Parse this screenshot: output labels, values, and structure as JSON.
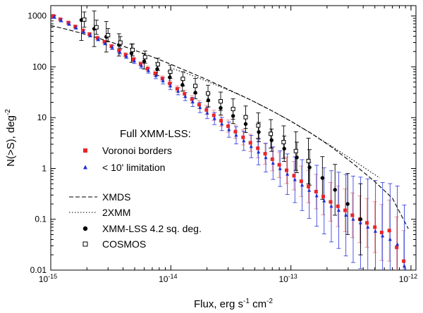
{
  "chart_data": {
    "type": "scatter",
    "scale": "log-log",
    "title": "",
    "xlabel": {
      "base": "Flux, erg s",
      "exp1": "-1",
      "mid": " cm",
      "exp2": "-2"
    },
    "ylabel": {
      "base": "N(>S), deg",
      "exp": "-2"
    },
    "xlim": [
      1e-15,
      1.1e-12
    ],
    "ylim": [
      0.01,
      1600
    ],
    "x_ticks": [
      {
        "value": 1e-15,
        "base": "10",
        "exp": "-15"
      },
      {
        "value": 1e-14,
        "base": "10",
        "exp": "-14"
      },
      {
        "value": 1e-13,
        "base": "10",
        "exp": "-13"
      },
      {
        "value": 1e-12,
        "base": "10",
        "exp": "-12"
      }
    ],
    "y_ticks": [
      {
        "value": 0.01,
        "label": "0.01"
      },
      {
        "value": 0.1,
        "label": "0.1"
      },
      {
        "value": 1,
        "label": "1"
      },
      {
        "value": 10,
        "label": "10"
      },
      {
        "value": 100,
        "label": "100"
      },
      {
        "value": 1000,
        "label": "1000"
      }
    ],
    "legend": {
      "position": "bottom-left",
      "group_title": "Full XMM-LSS:",
      "entries": [
        {
          "series": "voronoi",
          "label": "Voronoi borders"
        },
        {
          "series": "limit10",
          "label": "< 10' limitation"
        },
        {
          "series": "xmds",
          "label": "XMDS"
        },
        {
          "series": "twoxmm",
          "label": "2XMM"
        },
        {
          "series": "xmmlss42",
          "label": "XMM-LSS 4.2 sq. deg."
        },
        {
          "series": "cosmos",
          "label": "COSMOS"
        }
      ]
    },
    "series": [
      {
        "id": "voronoi",
        "name": "Voronoi borders",
        "marker": "square",
        "color": "#e8262a",
        "errcolor": "#e88a8a",
        "x": [
          1.05e-15,
          1.2e-15,
          1.4e-15,
          1.6e-15,
          1.85e-15,
          2.1e-15,
          2.45e-15,
          2.8e-15,
          3.2e-15,
          3.7e-15,
          4.2e-15,
          4.9e-15,
          5.6e-15,
          6.4e-15,
          7.4e-15,
          8.5e-15,
          9.8e-15,
          1.13e-14,
          1.3e-14,
          1.5e-14,
          1.72e-14,
          1.98e-14,
          2.28e-14,
          2.62e-14,
          3e-14,
          3.45e-14,
          4e-14,
          4.6e-14,
          5.3e-14,
          6.1e-14,
          7e-14,
          8e-14,
          9.2e-14,
          1.06e-13,
          1.22e-13,
          1.4e-13,
          1.62e-13,
          1.86e-13,
          2.14e-13,
          2.46e-13,
          2.83e-13,
          3.25e-13,
          3.75e-13,
          4.3e-13,
          5e-13,
          5.7e-13,
          6.6e-13,
          7.6e-13,
          8.7e-13
        ],
        "y": [
          1000,
          860,
          740,
          620,
          520,
          440,
          370,
          310,
          255,
          210,
          172,
          140,
          114,
          92,
          74,
          59,
          47,
          37,
          29.5,
          23,
          18,
          14.2,
          11.1,
          8.7,
          6.8,
          5.3,
          4.1,
          3.2,
          2.5,
          1.95,
          1.52,
          1.18,
          0.92,
          0.72,
          0.56,
          0.44,
          0.35,
          0.28,
          0.22,
          0.18,
          0.15,
          0.12,
          0.1,
          0.085,
          0.07,
          0.055,
          0.06,
          0.028,
          0.015
        ],
        "err": [
          0.03,
          0.03,
          0.03,
          0.03,
          0.03,
          0.03,
          0.03,
          0.03,
          0.03,
          0.04,
          0.04,
          0.04,
          0.04,
          0.05,
          0.05,
          0.05,
          0.06,
          0.06,
          0.07,
          0.07,
          0.08,
          0.09,
          0.1,
          0.11,
          0.12,
          0.13,
          0.15,
          0.17,
          0.19,
          0.21,
          0.23,
          0.25,
          0.26,
          0.28,
          0.3,
          0.32,
          0.34,
          0.36,
          0.38,
          0.4,
          0.42,
          0.44,
          0.46,
          0.48,
          0.5,
          0.55,
          0.6,
          0.6,
          0.6
        ]
      },
      {
        "id": "limit10",
        "name": "< 10' limitation",
        "marker": "triangle",
        "color": "#1f2fd8",
        "errcolor": "#3a47e0",
        "x": [
          1.07e-15,
          1.22e-15,
          1.42e-15,
          1.62e-15,
          1.88e-15,
          2.13e-15,
          2.48e-15,
          2.84e-15,
          3.25e-15,
          3.75e-15,
          4.26e-15,
          4.96e-15,
          5.68e-15,
          6.5e-15,
          7.5e-15,
          8.6e-15,
          9.9e-15,
          1.15e-14,
          1.32e-14,
          1.52e-14,
          1.75e-14,
          2.01e-14,
          2.31e-14,
          2.66e-14,
          3.05e-14,
          3.5e-14,
          4.05e-14,
          4.67e-14,
          5.37e-14,
          6.18e-14,
          7.1e-14,
          8.12e-14,
          9.35e-14,
          1.08e-13,
          1.24e-13,
          1.42e-13,
          1.64e-13,
          1.89e-13,
          2.17e-13,
          2.5e-13,
          2.87e-13,
          3.3e-13,
          3.8e-13,
          4.37e-13,
          5.05e-13,
          5.8e-13,
          6.7e-13,
          7.7e-13,
          8.8e-13
        ],
        "y": [
          960,
          820,
          700,
          590,
          495,
          415,
          348,
          290,
          240,
          196,
          160,
          130,
          105,
          84,
          67,
          53,
          42,
          33,
          26,
          20.3,
          15.8,
          12.3,
          9.6,
          7.5,
          5.8,
          4.5,
          3.5,
          2.7,
          2.1,
          1.63,
          1.27,
          0.99,
          0.77,
          0.6,
          0.47,
          0.37,
          0.29,
          0.23,
          0.18,
          0.15,
          0.12,
          0.1,
          0.085,
          0.07,
          0.058,
          0.047,
          0.04,
          0.032,
          0.012
        ],
        "err": [
          0.03,
          0.03,
          0.03,
          0.03,
          0.03,
          0.03,
          0.03,
          0.03,
          0.04,
          0.04,
          0.04,
          0.05,
          0.05,
          0.05,
          0.06,
          0.06,
          0.07,
          0.07,
          0.08,
          0.09,
          0.1,
          0.11,
          0.12,
          0.13,
          0.15,
          0.17,
          0.19,
          0.22,
          0.25,
          0.28,
          0.32,
          0.35,
          0.4,
          0.45,
          0.5,
          0.55,
          0.6,
          0.65,
          0.7,
          0.75,
          0.8,
          0.85,
          0.9,
          0.95,
          1.0,
          1.05,
          1.1,
          1.15,
          1.2
        ]
      },
      {
        "id": "xmmlss42",
        "name": "XMM-LSS 4.2 sq. deg.",
        "marker": "circle",
        "color": "#000000",
        "errcolor": "#000000",
        "x": [
          1.8e-15,
          2.3e-15,
          2.9e-15,
          3.7e-15,
          4.7e-15,
          6e-15,
          7.7e-15,
          9.8e-15,
          1.25e-14,
          1.6e-14,
          2.05e-14,
          2.6e-14,
          3.3e-14,
          4.2e-14,
          5.4e-14,
          6.9e-14,
          8.8e-14,
          1.12e-13,
          1.43e-13,
          1.83e-13,
          2.33e-13,
          2.97e-13,
          3.8e-13
        ],
        "y": [
          830,
          560,
          390,
          270,
          185,
          128,
          90,
          62,
          44,
          31,
          22,
          15.5,
          10.8,
          7.5,
          5.2,
          3.6,
          2.45,
          1.65,
          1.05,
          0.65,
          0.38,
          0.2,
          0.1
        ],
        "err": [
          0.4,
          0.35,
          0.3,
          0.22,
          0.18,
          0.15,
          0.13,
          0.12,
          0.12,
          0.12,
          0.13,
          0.14,
          0.15,
          0.17,
          0.19,
          0.22,
          0.25,
          0.3,
          0.35,
          0.42,
          0.5,
          0.6,
          0.7
        ]
      },
      {
        "id": "cosmos",
        "name": "COSMOS",
        "marker": "open-square",
        "color": "#000000",
        "errcolor": "#000000",
        "x": [
          1.9e-15,
          2.4e-15,
          3e-15,
          3.8e-15,
          4.8e-15,
          6.1e-15,
          7.8e-15,
          9.9e-15,
          1.26e-14,
          1.6e-14,
          2.04e-14,
          2.6e-14,
          3.3e-14,
          4.2e-14,
          5.35e-14,
          6.8e-14,
          8.7e-14,
          1.1e-13,
          1.4e-13
        ],
        "y": [
          850,
          600,
          420,
          300,
          215,
          155,
          112,
          80,
          58,
          42,
          30,
          21,
          14.8,
          10.2,
          7.0,
          4.8,
          3.3,
          2.2,
          1.4
        ],
        "err": [
          0.15,
          0.14,
          0.13,
          0.12,
          0.12,
          0.12,
          0.12,
          0.13,
          0.14,
          0.15,
          0.16,
          0.18,
          0.2,
          0.22,
          0.25,
          0.28,
          0.32,
          0.38,
          0.45
        ]
      }
    ],
    "models": [
      {
        "id": "xmds",
        "name": "XMDS",
        "style": "dashed",
        "x": [
          1e-15,
          1.3e-15,
          1.7e-15,
          2.2e-15,
          3e-15,
          4e-15,
          5.5e-15,
          7.5e-15,
          1e-14,
          1.4e-14,
          2e-14,
          3e-14,
          4.5e-14,
          7e-14,
          1e-13,
          1.5e-13,
          2.2e-13,
          3.3e-13,
          5e-13,
          7e-13,
          9.5e-13
        ],
        "y": [
          650,
          560,
          475,
          400,
          320,
          255,
          195,
          148,
          112,
          80,
          56,
          36,
          23,
          13.5,
          8.5,
          4.8,
          2.6,
          1.25,
          0.55,
          0.26,
          0.065
        ]
      },
      {
        "id": "twoxmm",
        "name": "2XMM",
        "style": "dotted",
        "x": [
          1e-14,
          1.4e-14,
          2e-14,
          3e-14,
          4.5e-14,
          7e-14,
          1e-13,
          1.5e-13,
          2.2e-13,
          3.3e-13,
          5.5e-13
        ],
        "y": [
          95,
          72,
          52,
          35,
          23,
          13.5,
          8.5,
          4.8,
          2.7,
          1.45,
          0.65
        ]
      }
    ]
  }
}
